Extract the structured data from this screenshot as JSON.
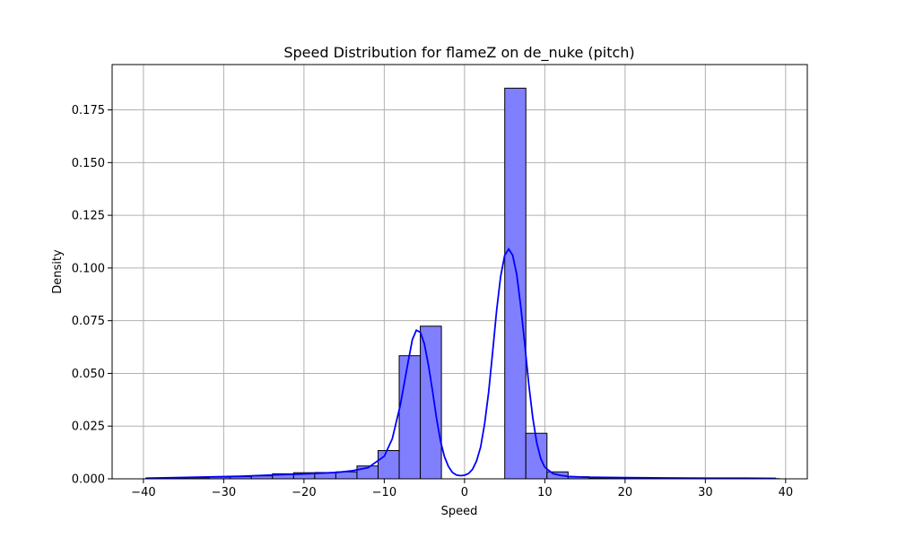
{
  "chart_data": {
    "type": "bar",
    "title": "Speed Distribution for flameZ on de_nuke (pitch)",
    "xlabel": "Speed",
    "ylabel": "Density",
    "xlim": [
      -43.9,
      42.7
    ],
    "ylim": [
      0,
      0.1965
    ],
    "xticks": [
      -40,
      -30,
      -20,
      -10,
      0,
      10,
      20,
      30,
      40
    ],
    "xtick_labels": [
      "−40",
      "−30",
      "−20",
      "−10",
      "0",
      "10",
      "20",
      "30",
      "40"
    ],
    "yticks": [
      0,
      0.025,
      0.05,
      0.075,
      0.1,
      0.125,
      0.15,
      0.175
    ],
    "ytick_labels": [
      "0.000",
      "0.025",
      "0.050",
      "0.075",
      "0.100",
      "0.125",
      "0.150",
      "0.175"
    ],
    "grid": true,
    "bin_edges": [
      -39.7,
      -37.07,
      -34.44,
      -31.81,
      -29.18,
      -26.55,
      -23.92,
      -21.29,
      -18.66,
      -16.03,
      -13.4,
      -10.77,
      -8.14,
      -5.51,
      -2.88,
      -0.25,
      2.38,
      5.01,
      7.64,
      10.27,
      12.9,
      15.53,
      18.16,
      20.79,
      23.42,
      26.05,
      28.68,
      31.31,
      33.94,
      36.57,
      39.2
    ],
    "densities": [
      0.0003,
      0.0004,
      0.0005,
      0.0008,
      0.001,
      0.0014,
      0.0024,
      0.0029,
      0.003,
      0.0033,
      0.0061,
      0.0134,
      0.0584,
      0.0724,
      0,
      0,
      0,
      0.1853,
      0.0216,
      0.0033,
      0.001,
      0.0004,
      0.0004,
      0.0003,
      0.0003,
      0.0002,
      0.0002,
      0.0002,
      0.0002,
      0.0001
    ],
    "kde": {
      "x": [
        -39.7,
        -36,
        -32,
        -28,
        -24,
        -20,
        -16,
        -14,
        -12,
        -10,
        -9,
        -8,
        -7,
        -6.5,
        -6,
        -5.5,
        -5,
        -4.5,
        -4,
        -3.5,
        -3,
        -2.5,
        -2,
        -1.5,
        -1,
        -0.5,
        0,
        0.5,
        1,
        1.5,
        2,
        2.5,
        3,
        3.5,
        4,
        4.5,
        5,
        5.5,
        6,
        6.5,
        7,
        7.5,
        8,
        8.5,
        9,
        9.5,
        10,
        11,
        12,
        13,
        15,
        20,
        25,
        30,
        35,
        38.8
      ],
      "y": [
        0.0003,
        0.0006,
        0.0009,
        0.0012,
        0.0018,
        0.0023,
        0.003,
        0.0038,
        0.0053,
        0.0107,
        0.019,
        0.035,
        0.056,
        0.066,
        0.0705,
        0.0695,
        0.064,
        0.054,
        0.042,
        0.029,
        0.018,
        0.0105,
        0.0058,
        0.003,
        0.0018,
        0.0015,
        0.0017,
        0.0025,
        0.0045,
        0.0085,
        0.015,
        0.026,
        0.041,
        0.06,
        0.08,
        0.096,
        0.106,
        0.109,
        0.106,
        0.097,
        0.082,
        0.064,
        0.045,
        0.029,
        0.017,
        0.0095,
        0.0055,
        0.0025,
        0.0016,
        0.0011,
        0.0008,
        0.0006,
        0.0004,
        0.0003,
        0.0003,
        0.0002
      ]
    },
    "colors": {
      "bar_fill": "#8080ff",
      "bar_edge": "#000000",
      "kde_line": "#0000ff",
      "grid": "#b0b0b0"
    }
  }
}
